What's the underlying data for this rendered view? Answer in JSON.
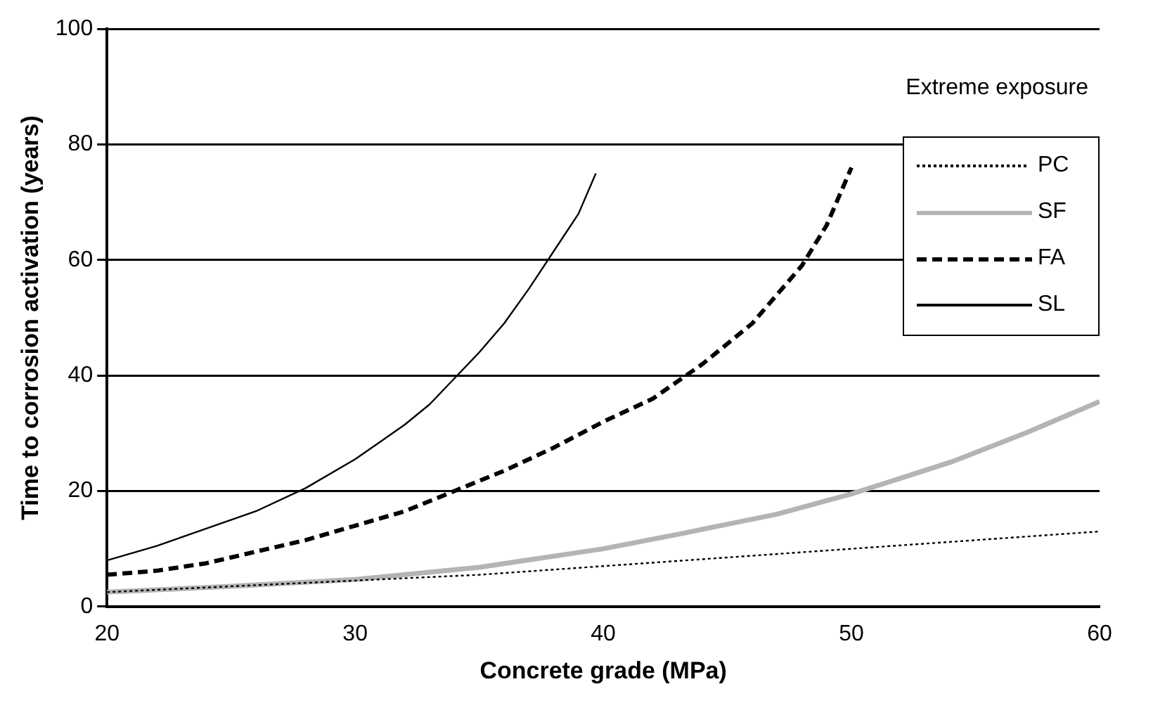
{
  "chart_data": {
    "type": "line",
    "xlabel": "Concrete grade (MPa)",
    "ylabel": "Time to corrosion activation (years)",
    "annotations": [
      "Extreme exposure"
    ],
    "xlim": [
      20,
      60
    ],
    "xticks": [
      20,
      30,
      40,
      50,
      60
    ],
    "ylim": [
      0,
      100
    ],
    "yticks": [
      0,
      20,
      40,
      60,
      80,
      100
    ],
    "grid": "y",
    "legend": "right",
    "marker": "none",
    "series": [
      {
        "name": "PC",
        "color": "#000000",
        "line_style": "dotted",
        "x": [
          20,
          25,
          30,
          35,
          40,
          45,
          50,
          55,
          60
        ],
        "values": [
          2.5,
          3.5,
          4.5,
          5.5,
          7,
          8.5,
          10,
          11.5,
          13
        ]
      },
      {
        "name": "SF",
        "color": "#b4b4b4",
        "line_style": "solid",
        "x": [
          20,
          25,
          30,
          35,
          40,
          43,
          47,
          50,
          54,
          57,
          60
        ],
        "values": [
          2.5,
          3.5,
          4.7,
          6.8,
          10,
          12.5,
          16,
          19.5,
          25,
          30,
          35.5
        ]
      },
      {
        "name": "FA",
        "color": "#000000",
        "line_style": "dashed",
        "x": [
          20,
          22,
          24,
          26,
          28,
          30,
          32,
          34,
          36,
          38,
          40,
          42,
          44,
          46,
          48,
          49,
          50
        ],
        "values": [
          5.5,
          6.2,
          7.5,
          9.5,
          11.5,
          14,
          16.5,
          20,
          23.5,
          27.5,
          32,
          36,
          42,
          49,
          59,
          66,
          76
        ]
      },
      {
        "name": "SL",
        "color": "#000000",
        "line_style": "solid",
        "x": [
          20,
          22,
          24,
          26,
          28,
          30,
          31,
          32,
          33,
          34,
          35,
          36,
          37,
          38,
          39,
          39.7
        ],
        "values": [
          8,
          10.5,
          13.5,
          16.5,
          20.5,
          25.5,
          28.5,
          31.5,
          35,
          39.5,
          44,
          49,
          55,
          61.5,
          68,
          75
        ]
      }
    ]
  }
}
